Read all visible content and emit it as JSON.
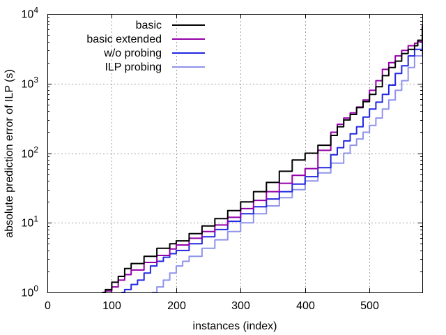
{
  "chart_data": {
    "type": "line",
    "title": "",
    "xlabel": "instances (index)",
    "ylabel": "absolute prediction error of ILP (s)",
    "xlim": [
      0,
      582
    ],
    "ylim": [
      1,
      10000
    ],
    "y_scale": "log",
    "grid": true,
    "legend_position": "top-center",
    "x_ticks": [
      {
        "value": 0,
        "label": "0"
      },
      {
        "value": 100,
        "label": "100"
      },
      {
        "value": 200,
        "label": "200"
      },
      {
        "value": 300,
        "label": "300"
      },
      {
        "value": 400,
        "label": "400"
      },
      {
        "value": 500,
        "label": "500"
      }
    ],
    "y_ticks": [
      {
        "value": 1,
        "base": "10",
        "exp": "0"
      },
      {
        "value": 10,
        "base": "10",
        "exp": "1"
      },
      {
        "value": 100,
        "base": "10",
        "exp": "2"
      },
      {
        "value": 1000,
        "base": "10",
        "exp": "3"
      },
      {
        "value": 10000,
        "base": "10",
        "exp": "4"
      }
    ],
    "series": [
      {
        "name": "basic",
        "color": "#000000",
        "x": [
          85,
          90,
          100,
          110,
          120,
          130,
          150,
          170,
          190,
          200,
          220,
          240,
          260,
          280,
          300,
          320,
          340,
          360,
          380,
          400,
          420,
          440,
          450,
          460,
          470,
          480,
          490,
          500,
          510,
          520,
          530,
          540,
          550,
          560,
          570,
          575,
          582
        ],
        "y": [
          1.0,
          1.1,
          1.4,
          1.7,
          2.2,
          2.6,
          3.3,
          4.3,
          5.0,
          5.5,
          7.0,
          9.0,
          11.5,
          15.0,
          20.0,
          28.0,
          38.0,
          55.0,
          80.0,
          100.0,
          130.0,
          180.0,
          240.0,
          300.0,
          360.0,
          450.0,
          550.0,
          700.0,
          900.0,
          1300.0,
          1700.0,
          2100.0,
          2700.0,
          3100.0,
          3500.0,
          4200.0,
          6500.0
        ]
      },
      {
        "name": "basic extended",
        "color": "#9400a8",
        "x": [
          85,
          90,
          100,
          110,
          120,
          130,
          150,
          170,
          190,
          200,
          220,
          240,
          260,
          280,
          300,
          320,
          340,
          360,
          380,
          400,
          420,
          440,
          450,
          460,
          470,
          480,
          490,
          500,
          510,
          520,
          530,
          540,
          550,
          560,
          570,
          575,
          582
        ],
        "y": [
          1.0,
          1.05,
          1.2,
          1.5,
          1.8,
          2.1,
          2.7,
          3.4,
          4.2,
          4.8,
          6.0,
          7.5,
          9.3,
          12.0,
          16.0,
          21.0,
          28.0,
          37.0,
          48.0,
          60.0,
          110.0,
          200.0,
          260.0,
          320.0,
          380.0,
          460.0,
          580.0,
          800.0,
          1100.0,
          1600.0,
          2000.0,
          2500.0,
          3000.0,
          3500.0,
          3800.0,
          4000.0,
          7000.0
        ]
      },
      {
        "name": "w/o probing",
        "color": "#2228e0",
        "x": [
          115,
          120,
          130,
          140,
          150,
          160,
          170,
          180,
          190,
          200,
          220,
          240,
          260,
          280,
          300,
          320,
          340,
          360,
          380,
          400,
          420,
          440,
          450,
          460,
          470,
          480,
          490,
          500,
          510,
          520,
          530,
          540,
          550,
          560,
          570,
          582
        ],
        "y": [
          1.0,
          1.1,
          1.3,
          1.5,
          1.9,
          2.4,
          2.8,
          3.2,
          3.6,
          4.0,
          5.0,
          6.3,
          8.0,
          10.5,
          13.5,
          17.0,
          22.0,
          28.0,
          36.0,
          46.0,
          62.0,
          95.0,
          120.0,
          150.0,
          190.0,
          240.0,
          330.0,
          430.0,
          540.0,
          700.0,
          950.0,
          1400.0,
          1800.0,
          2500.0,
          3100.0,
          6000.0
        ]
      },
      {
        "name": "ILP probing",
        "color": "#8f93ea",
        "x": [
          162,
          170,
          180,
          190,
          200,
          210,
          220,
          240,
          260,
          280,
          300,
          320,
          340,
          360,
          380,
          400,
          420,
          440,
          460,
          470,
          480,
          490,
          500,
          510,
          520,
          530,
          540,
          550,
          560,
          570,
          582
        ],
        "y": [
          1.0,
          1.2,
          1.5,
          1.9,
          2.4,
          2.8,
          3.3,
          4.3,
          5.7,
          7.5,
          10.0,
          13.5,
          17.5,
          23.0,
          30.0,
          40.0,
          52.0,
          72.0,
          100.0,
          130.0,
          160.0,
          200.0,
          250.0,
          320.0,
          430.0,
          580.0,
          800.0,
          1100.0,
          1700.0,
          2500.0,
          6000.0
        ]
      }
    ]
  }
}
